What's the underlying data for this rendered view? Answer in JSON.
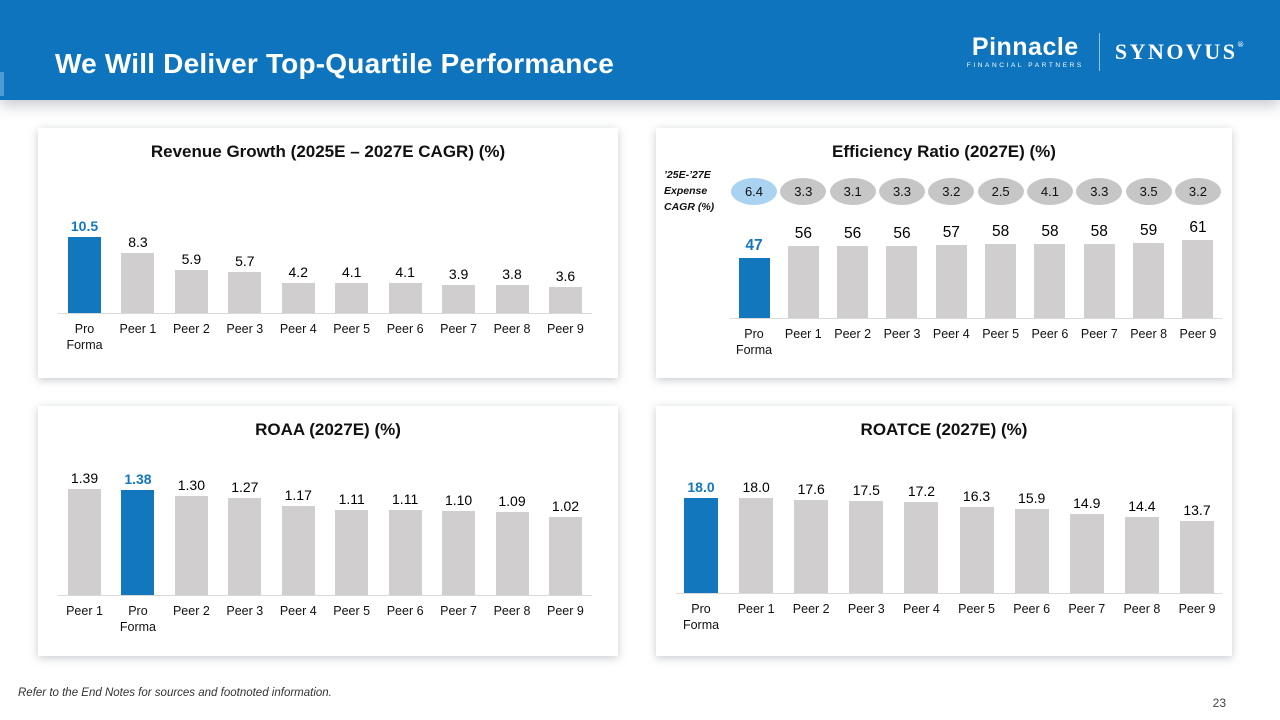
{
  "header": {
    "title": "We Will Deliver Top-Quartile Performance",
    "logos": {
      "pinnacle": {
        "name": "Pinnacle",
        "subtitle": "FINANCIAL PARTNERS"
      },
      "synovus": {
        "name": "SYNOVUS",
        "registered": "®"
      }
    }
  },
  "colors": {
    "header_blue": "#0d74bd",
    "bar_blue": "#1377be",
    "bar_gray": "#d0cece",
    "oval_gray": "#c6c6c6",
    "oval_light_blue": "#a9d3f0",
    "axis_line": "#d9d9d9"
  },
  "chart_data": [
    {
      "type": "bar",
      "title": "Revenue Growth (2025E – 2027E CAGR) (%)",
      "categories": [
        "Pro Forma",
        "Peer 1",
        "Peer 2",
        "Peer 3",
        "Peer 4",
        "Peer 5",
        "Peer 6",
        "Peer 7",
        "Peer 8",
        "Peer 9"
      ],
      "values": [
        10.5,
        8.3,
        5.9,
        5.7,
        4.2,
        4.1,
        4.1,
        3.9,
        3.8,
        3.6
      ],
      "labels": [
        "10.5",
        "8.3",
        "5.9",
        "5.7",
        "4.2",
        "4.1",
        "4.1",
        "3.9",
        "3.8",
        "3.6"
      ],
      "highlight_index": 0,
      "highlight_category": "Pro Forma",
      "ylim": [
        0,
        10.5
      ],
      "grid": false,
      "legend": "none"
    },
    {
      "type": "bar",
      "title": "Efficiency Ratio (2027E) (%)",
      "categories": [
        "Pro Forma",
        "Peer 1",
        "Peer 2",
        "Peer 3",
        "Peer 4",
        "Peer 5",
        "Peer 6",
        "Peer 7",
        "Peer 8",
        "Peer 9"
      ],
      "values": [
        47,
        56,
        56,
        56,
        57,
        58,
        58,
        58,
        59,
        61
      ],
      "labels": [
        "47",
        "56",
        "56",
        "56",
        "57",
        "58",
        "58",
        "58",
        "59",
        "61"
      ],
      "highlight_index": 0,
      "highlight_category": "Pro Forma",
      "ylim": [
        0,
        61
      ],
      "grid": false,
      "legend": "none",
      "expense_cagr_row": {
        "label": "’25E-’27E Expense CAGR (%)",
        "label_lines": [
          "’25E-’27E",
          "Expense",
          "CAGR (%)"
        ],
        "values": [
          6.4,
          3.3,
          3.1,
          3.3,
          3.2,
          2.5,
          4.1,
          3.3,
          3.5,
          3.2
        ],
        "labels": [
          "6.4",
          "3.3",
          "3.1",
          "3.3",
          "3.2",
          "2.5",
          "4.1",
          "3.3",
          "3.5",
          "3.2"
        ],
        "highlight_index": 0
      }
    },
    {
      "type": "bar",
      "title": "ROAA (2027E) (%)",
      "categories": [
        "Peer 1",
        "Pro Forma",
        "Peer 2",
        "Peer 3",
        "Peer 4",
        "Peer 5",
        "Peer 6",
        "Peer 7",
        "Peer 8",
        "Peer 9"
      ],
      "values": [
        1.39,
        1.38,
        1.3,
        1.27,
        1.17,
        1.11,
        1.11,
        1.1,
        1.09,
        1.02
      ],
      "labels": [
        "1.39",
        "1.38",
        "1.30",
        "1.27",
        "1.17",
        "1.11",
        "1.11",
        "1.10",
        "1.09",
        "1.02"
      ],
      "highlight_index": 1,
      "highlight_category": "Pro Forma",
      "ylim": [
        0,
        1.39
      ],
      "grid": false,
      "legend": "none"
    },
    {
      "type": "bar",
      "title": "ROATCE (2027E) (%)",
      "categories": [
        "Pro Forma",
        "Peer 1",
        "Peer 2",
        "Peer 3",
        "Peer 4",
        "Peer 5",
        "Peer 6",
        "Peer 7",
        "Peer 8",
        "Peer 9"
      ],
      "values": [
        18.0,
        18.0,
        17.6,
        17.5,
        17.2,
        16.3,
        15.9,
        14.9,
        14.4,
        13.7
      ],
      "labels": [
        "18.0",
        "18.0",
        "17.6",
        "17.5",
        "17.2",
        "16.3",
        "15.9",
        "14.9",
        "14.4",
        "13.7"
      ],
      "highlight_index": 0,
      "highlight_category": "Pro Forma",
      "ylim": [
        0,
        18
      ],
      "grid": false,
      "legend": "none"
    }
  ],
  "footer": {
    "note": "Refer to the End Notes for sources and footnoted information.",
    "page_number": "23"
  }
}
